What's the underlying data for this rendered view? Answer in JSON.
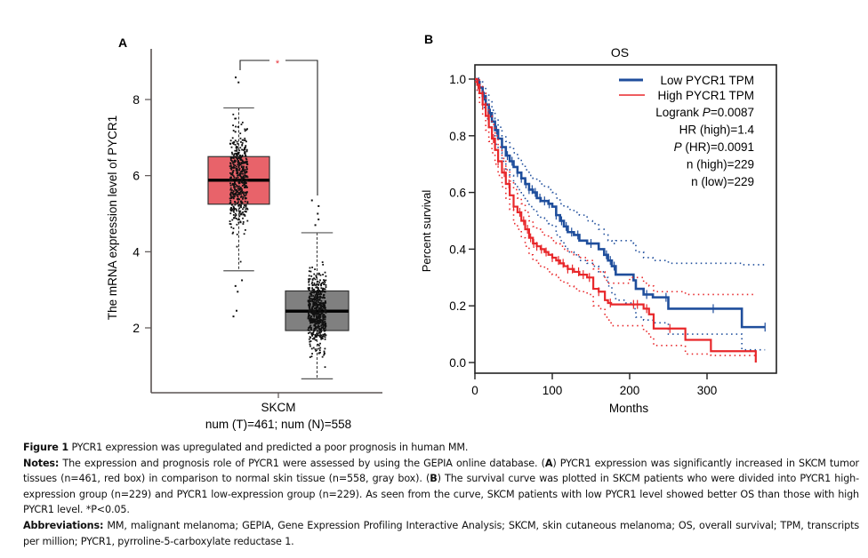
{
  "figure": {
    "panel_a_label": "A",
    "panel_b_label": "B"
  },
  "chart_data": [
    {
      "type": "box",
      "panel": "A",
      "title": "",
      "ylabel": "The mRNA expression level of PYCR1",
      "xlabel": "SKCM",
      "xsublabel": "num (T)=461; num (N)=558",
      "ylim": [
        0.4,
        9.5
      ],
      "yticks": [
        2,
        4,
        6,
        8
      ],
      "significance": "*",
      "significance_color": "#E8333A",
      "groups": [
        {
          "name": "Tumor",
          "n": 461,
          "color": "#E8636A",
          "q1": 5.25,
          "median": 5.88,
          "q3": 6.5,
          "whisker_low": 3.5,
          "whisker_high": 7.78,
          "outliers": [
            8.58,
            8.45,
            3.25,
            3.1,
            2.95,
            2.45,
            2.3
          ]
        },
        {
          "name": "Normal",
          "n": 558,
          "color": "#808080",
          "q1": 1.93,
          "median": 2.44,
          "q3": 2.97,
          "whisker_low": 0.66,
          "whisker_high": 4.5,
          "outliers": [
            5.35,
            5.2,
            5.0,
            4.85,
            4.7
          ]
        }
      ]
    },
    {
      "type": "line",
      "panel": "B",
      "title": "OS",
      "xlabel": "Months",
      "ylabel": "Percent survival",
      "xlim": [
        0,
        390
      ],
      "ylim": [
        -0.04,
        1.05
      ],
      "xticks": [
        0,
        100,
        200,
        300
      ],
      "yticks": [
        "0.0",
        "0.2",
        "0.4",
        "0.6",
        "0.8",
        "1.0"
      ],
      "legend": {
        "position": "top-right",
        "entries": [
          {
            "label": "Low PYCR1 TPM",
            "color": "#1F4E9C"
          },
          {
            "label": "High PYCR1 TPM",
            "color": "#E8272A"
          }
        ],
        "stats": [
          {
            "prefix": "Logrank ",
            "italic": "P",
            "suffix": "=0.0087"
          },
          {
            "prefix": "HR (high)=1.4",
            "italic": "",
            "suffix": ""
          },
          {
            "prefix": "",
            "italic": "P",
            "suffix": " (HR)=0.0091"
          },
          {
            "prefix": "n (high)=229",
            "italic": "",
            "suffix": ""
          },
          {
            "prefix": "n (low)=229",
            "italic": "",
            "suffix": ""
          }
        ]
      },
      "series": [
        {
          "name": "Low PYCR1 TPM",
          "color": "#1F4E9C",
          "x": [
            0,
            3,
            6,
            10,
            14,
            18,
            22,
            26,
            30,
            35,
            40,
            45,
            50,
            55,
            60,
            65,
            70,
            75,
            80,
            85,
            90,
            95,
            100,
            105,
            110,
            115,
            120,
            128,
            135,
            145,
            152,
            160,
            167,
            172,
            177,
            182,
            195,
            205,
            208,
            218,
            230,
            250,
            300,
            345,
            375
          ],
          "y": [
            1.0,
            0.99,
            0.97,
            0.94,
            0.91,
            0.88,
            0.85,
            0.82,
            0.79,
            0.76,
            0.73,
            0.71,
            0.69,
            0.67,
            0.65,
            0.63,
            0.61,
            0.6,
            0.58,
            0.57,
            0.57,
            0.56,
            0.55,
            0.52,
            0.5,
            0.48,
            0.46,
            0.45,
            0.43,
            0.42,
            0.42,
            0.4,
            0.38,
            0.36,
            0.34,
            0.31,
            0.31,
            0.29,
            0.26,
            0.24,
            0.23,
            0.19,
            0.19,
            0.125,
            0.125
          ],
          "ci_upper": [
            1.0,
            1.0,
            0.99,
            0.97,
            0.95,
            0.92,
            0.89,
            0.86,
            0.83,
            0.8,
            0.78,
            0.76,
            0.74,
            0.72,
            0.7,
            0.68,
            0.66,
            0.65,
            0.64,
            0.63,
            0.62,
            0.61,
            0.6,
            0.58,
            0.56,
            0.55,
            0.54,
            0.53,
            0.52,
            0.5,
            0.49,
            0.47,
            0.45,
            0.43,
            0.42,
            0.43,
            0.43,
            0.42,
            0.39,
            0.37,
            0.36,
            0.35,
            0.35,
            0.345,
            0.345
          ],
          "ci_lower": [
            0.99,
            0.96,
            0.93,
            0.9,
            0.86,
            0.83,
            0.8,
            0.77,
            0.74,
            0.71,
            0.68,
            0.66,
            0.63,
            0.61,
            0.59,
            0.57,
            0.55,
            0.54,
            0.52,
            0.51,
            0.5,
            0.49,
            0.48,
            0.45,
            0.43,
            0.41,
            0.39,
            0.38,
            0.36,
            0.35,
            0.34,
            0.32,
            0.3,
            0.27,
            0.24,
            0.22,
            0.21,
            0.19,
            0.16,
            0.15,
            0.14,
            0.1,
            0.1,
            0.045,
            0.045
          ],
          "censor_x": [
            5,
            12,
            20,
            28,
            35,
            42,
            48,
            55,
            60,
            66,
            70,
            74,
            78,
            84,
            90,
            96,
            105,
            112,
            118,
            125,
            133,
            150,
            170,
            175,
            180,
            222,
            247,
            308,
            375
          ]
        },
        {
          "name": "High PYCR1 TPM",
          "color": "#E8272A",
          "x": [
            0,
            3,
            6,
            10,
            14,
            18,
            22,
            26,
            30,
            35,
            40,
            45,
            50,
            55,
            60,
            65,
            70,
            75,
            80,
            85,
            90,
            95,
            100,
            105,
            110,
            115,
            120,
            128,
            135,
            145,
            153,
            160,
            168,
            172,
            176,
            200,
            218,
            225,
            231,
            250,
            272,
            305,
            363
          ],
          "y": [
            1.0,
            0.98,
            0.95,
            0.91,
            0.87,
            0.83,
            0.79,
            0.75,
            0.71,
            0.67,
            0.63,
            0.59,
            0.55,
            0.53,
            0.5,
            0.47,
            0.44,
            0.42,
            0.41,
            0.4,
            0.39,
            0.38,
            0.37,
            0.36,
            0.35,
            0.34,
            0.33,
            0.32,
            0.31,
            0.3,
            0.26,
            0.25,
            0.22,
            0.21,
            0.205,
            0.205,
            0.19,
            0.17,
            0.12,
            0.12,
            0.08,
            0.04,
            0.0
          ],
          "ci_upper": [
            1.0,
            1.0,
            0.98,
            0.95,
            0.91,
            0.87,
            0.84,
            0.8,
            0.76,
            0.72,
            0.68,
            0.64,
            0.61,
            0.58,
            0.56,
            0.53,
            0.5,
            0.48,
            0.47,
            0.46,
            0.45,
            0.44,
            0.43,
            0.42,
            0.41,
            0.4,
            0.39,
            0.38,
            0.37,
            0.36,
            0.33,
            0.32,
            0.29,
            0.28,
            0.28,
            0.3,
            0.28,
            0.27,
            0.25,
            0.25,
            0.24,
            0.24,
            0.24
          ],
          "ci_lower": [
            0.99,
            0.95,
            0.91,
            0.87,
            0.82,
            0.78,
            0.74,
            0.7,
            0.66,
            0.62,
            0.58,
            0.54,
            0.49,
            0.47,
            0.44,
            0.41,
            0.38,
            0.36,
            0.35,
            0.34,
            0.33,
            0.32,
            0.31,
            0.3,
            0.29,
            0.28,
            0.27,
            0.26,
            0.25,
            0.24,
            0.2,
            0.19,
            0.16,
            0.15,
            0.13,
            0.13,
            0.11,
            0.09,
            0.06,
            0.06,
            0.03,
            0.025,
            0.025
          ],
          "censor_x": [
            4,
            10,
            17,
            24,
            30,
            38,
            44,
            50,
            58,
            63,
            68,
            72,
            76,
            80,
            86,
            92,
            100,
            108,
            114,
            120,
            126,
            134,
            140,
            148,
            160,
            175,
            205,
            210,
            222,
            252
          ]
        }
      ]
    }
  ],
  "caption": {
    "figure_label": "Figure 1",
    "figure_title": " PYCR1 expression was upregulated and predicted a poor prognosis in human MM.",
    "notes_label": "Notes:",
    "notes_p1": " The expression and prognosis role of PYCR1 were assessed by using the GEPIA online database. (",
    "notes_a": "A",
    "notes_p2": ") PYCR1 expression was significantly increased in SKCM tumor tissues (n=461, red box) in comparison to normal skin tissue (n=558, gray box). (",
    "notes_b": "B",
    "notes_p3": ") The survival curve was plotted in SKCM patients who were divided into PYCR1 high-expression group (n=229) and PYCR1 low-expression group (n=229). As seen from the curve, SKCM patients with low PYCR1 level showed better OS than those with high PYCR1 level. *P<0.05.",
    "abbrev_label": "Abbreviations:",
    "abbrev_text": " MM, malignant melanoma; GEPIA, Gene Expression Profiling Interactive Analysis; SKCM, skin cutaneous melanoma; OS, overall survival; TPM, transcripts per million; PYCR1, pyrroline-5-carboxylate reductase 1."
  }
}
